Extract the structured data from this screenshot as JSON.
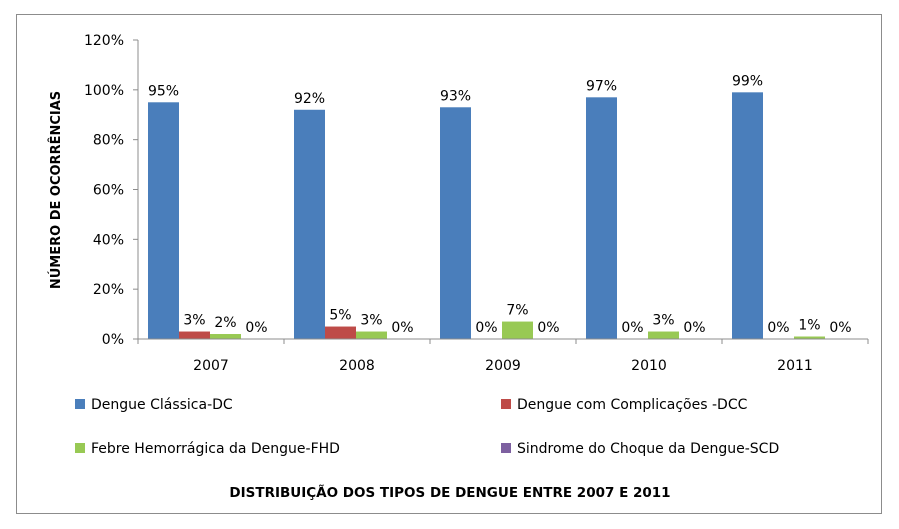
{
  "chart_data": {
    "type": "bar",
    "title": "DISTRIBUIÇÃO DOS TIPOS DE DENGUE ENTRE 2007 E 2011",
    "ylabel": "NÚMERO DE OCORRÊNCIAS",
    "xlabel": "",
    "categories": [
      "2007",
      "2008",
      "2009",
      "2010",
      "2011"
    ],
    "ylim": [
      0,
      120
    ],
    "yticks": [
      "0%",
      "20%",
      "40%",
      "60%",
      "80%",
      "100%",
      "120%"
    ],
    "ytick_values": [
      0,
      20,
      40,
      60,
      80,
      100,
      120
    ],
    "grid": false,
    "legend_position": "bottom",
    "series": [
      {
        "name": "Dengue Clássica-DC",
        "color": "#4a7ebb",
        "values": [
          95,
          92,
          93,
          97,
          99
        ],
        "labels": [
          "95%",
          "92%",
          "93%",
          "97%",
          "99%"
        ]
      },
      {
        "name": "Dengue com Complicações -DCC",
        "color": "#be4b48",
        "values": [
          3,
          5,
          0,
          0,
          0
        ],
        "labels": [
          "3%",
          "5%",
          "0%",
          "0%",
          "0%"
        ]
      },
      {
        "name": "Febre Hemorrágica da Dengue-FHD",
        "color": "#98c954",
        "values": [
          2,
          3,
          7,
          3,
          1
        ],
        "labels": [
          "2%",
          "3%",
          "7%",
          "3%",
          "1%"
        ]
      },
      {
        "name": "Sindrome do Choque da Dengue-SCD",
        "color": "#7d60a0",
        "values": [
          0,
          0,
          0,
          0,
          0
        ],
        "labels": [
          "0%",
          "0%",
          "0%",
          "0%",
          "0%"
        ]
      }
    ]
  }
}
